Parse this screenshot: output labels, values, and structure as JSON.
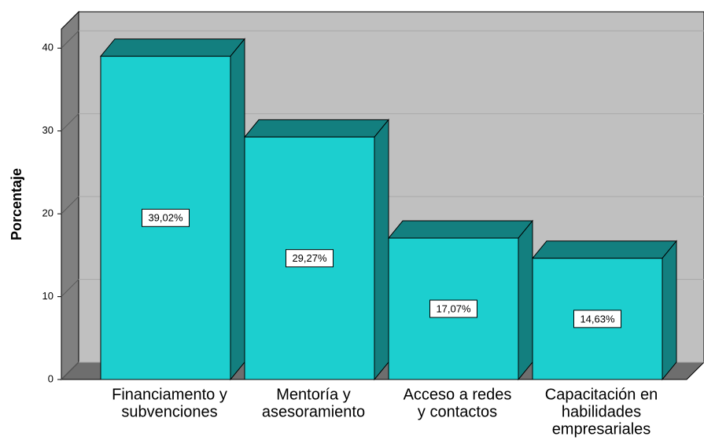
{
  "chart_data": {
    "type": "bar3d",
    "y_label": "Porcentaje",
    "categories": [
      [
        "Financiamento y",
        "subvenciones"
      ],
      [
        "Mentoría y",
        "asesoramiento"
      ],
      [
        "Acceso a redes",
        "y contactos"
      ],
      [
        "Capacitación en",
        "habilidades",
        "empresariales"
      ]
    ],
    "values": [
      39.02,
      29.27,
      17.07,
      14.63
    ],
    "value_labels": [
      "39,02%",
      "29,27%",
      "17,07%",
      "14,63%"
    ],
    "color": "#1ccfcf",
    "side_color": "#137f7f",
    "ylim": [
      0,
      42.3
    ],
    "yticks": [
      0,
      10,
      20,
      30,
      40
    ],
    "grid": true
  }
}
